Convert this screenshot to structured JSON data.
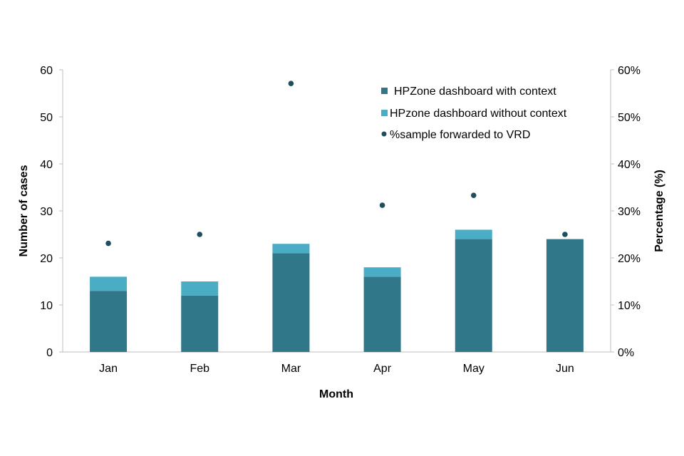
{
  "chart_data": {
    "type": "bar",
    "stacked": true,
    "categories": [
      "Jan",
      "Feb",
      "Mar",
      "Apr",
      "May",
      "Jun"
    ],
    "series": [
      {
        "name": "HPZone dashboard with context",
        "kind": "bar",
        "axis": "left",
        "color": "#31778a",
        "values": [
          13,
          12,
          21,
          16,
          24,
          24
        ]
      },
      {
        "name": "HPzone dashboard without context",
        "kind": "bar",
        "axis": "left",
        "color": "#4bacc6",
        "values": [
          3,
          3,
          2,
          2,
          2,
          0
        ]
      },
      {
        "name": "%sample forwarded to VRD",
        "kind": "scatter",
        "axis": "right",
        "color": "#1f4e5f",
        "values": [
          23.1,
          25,
          57.1,
          31.2,
          33.3,
          25
        ]
      }
    ],
    "xlabel": "Month",
    "ylabel": "Number of cases",
    "y2label": "Percentage (%)",
    "ylim": [
      0,
      60
    ],
    "yticks": [
      0,
      10,
      20,
      30,
      40,
      50,
      60
    ],
    "y2lim": [
      0,
      60
    ],
    "y2ticks": [
      "0%",
      "10%",
      "20%",
      "30%",
      "40%",
      "50%",
      "60%"
    ],
    "grid": false,
    "legend_position": "top-right"
  }
}
